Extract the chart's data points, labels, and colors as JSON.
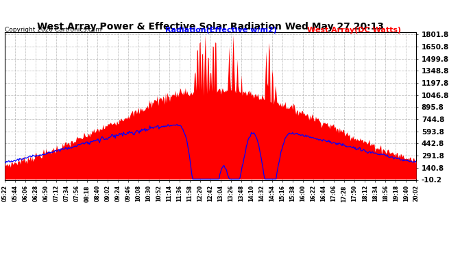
{
  "title": "West Array Power & Effective Solar Radiation Wed May 27 20:13",
  "copyright": "Copyright 2020 Cartronics.com",
  "legend_radiation": "Radiation(Effective w/m2)",
  "legend_west": "West Array(DC Watts)",
  "radiation_color": "blue",
  "west_color": "red",
  "background_color": "#ffffff",
  "plot_bg_color": "#ffffff",
  "grid_color": "#aaaaaa",
  "yticks": [
    -10.2,
    140.8,
    291.8,
    442.8,
    593.8,
    744.8,
    895.8,
    1046.8,
    1197.8,
    1348.8,
    1499.8,
    1650.8,
    1801.8
  ],
  "ymin": -10.2,
  "ymax": 1801.8,
  "x_labels": [
    "05:22",
    "05:44",
    "06:06",
    "06:28",
    "06:50",
    "07:12",
    "07:34",
    "07:56",
    "08:18",
    "08:40",
    "09:02",
    "09:24",
    "09:46",
    "10:08",
    "10:30",
    "10:52",
    "11:14",
    "11:36",
    "11:58",
    "12:20",
    "12:42",
    "13:04",
    "13:26",
    "13:48",
    "14:10",
    "14:32",
    "14:54",
    "15:16",
    "15:38",
    "16:00",
    "16:22",
    "16:44",
    "17:06",
    "17:28",
    "17:50",
    "18:12",
    "18:34",
    "18:56",
    "19:18",
    "19:40",
    "20:02"
  ]
}
